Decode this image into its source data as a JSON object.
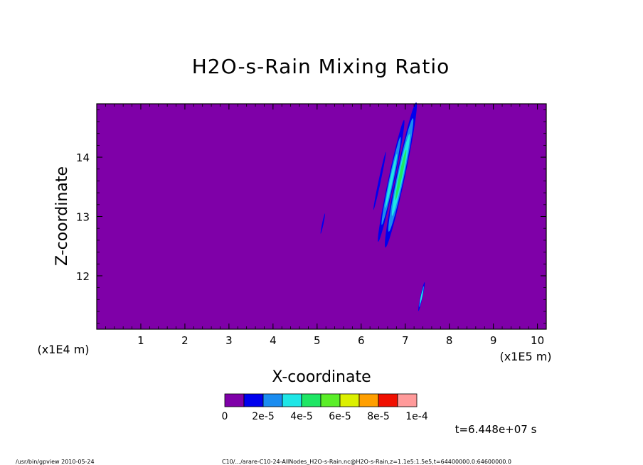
{
  "chart_data": {
    "type": "heatmap",
    "title": "H2O-s-Rain Mixing Ratio",
    "xlabel": "X-coordinate",
    "ylabel": "Z-coordinate",
    "x_scale_label": "(x1E5 m)",
    "y_scale_label": "(x1E4 m)",
    "xlim": [
      0,
      10.2
    ],
    "ylim": [
      11.1,
      14.9
    ],
    "xticks": [
      "1",
      "2",
      "3",
      "4",
      "5",
      "6",
      "7",
      "8",
      "9",
      "10"
    ],
    "yticks": [
      "12",
      "13",
      "14"
    ],
    "background_color": "#7f00a8",
    "colorbar": {
      "colors": [
        "#7f00a8",
        "#0000ee",
        "#1a8cf0",
        "#1ee6e6",
        "#1ee664",
        "#5aee28",
        "#dcf000",
        "#ff9f00",
        "#f00f00",
        "#ff9a9a"
      ],
      "labels": [
        "0",
        "2e-5",
        "4e-5",
        "6e-5",
        "8e-5",
        "1e-4"
      ]
    },
    "features": [
      {
        "label": "small-cell",
        "x": 5.13,
        "z": 12.88,
        "width": 0.03,
        "height": 0.35,
        "level": 1
      },
      {
        "label": "left-plume",
        "x": 6.42,
        "z": 13.6,
        "width": 0.05,
        "height": 1.0,
        "level": 1
      },
      {
        "label": "middle-plume",
        "x": 6.68,
        "z": 13.6,
        "width": 0.14,
        "height": 2.1,
        "level": 3
      },
      {
        "label": "right-plume",
        "x": 6.9,
        "z": 13.7,
        "width": 0.2,
        "height": 2.5,
        "level": 4
      },
      {
        "label": "low-cell",
        "x": 7.37,
        "z": 11.65,
        "width": 0.05,
        "height": 0.5,
        "level": 3
      }
    ],
    "time_label": "t=6.448e+07 s"
  },
  "footer": {
    "left": "/usr/bin/gpview  2010-05-24",
    "right": "C10/.../arare-C10-24-AllNodes_H2O-s-Rain.nc@H2O-s-Rain,z=1.1e5:1.5e5,t=64400000.0:64600000.0"
  }
}
